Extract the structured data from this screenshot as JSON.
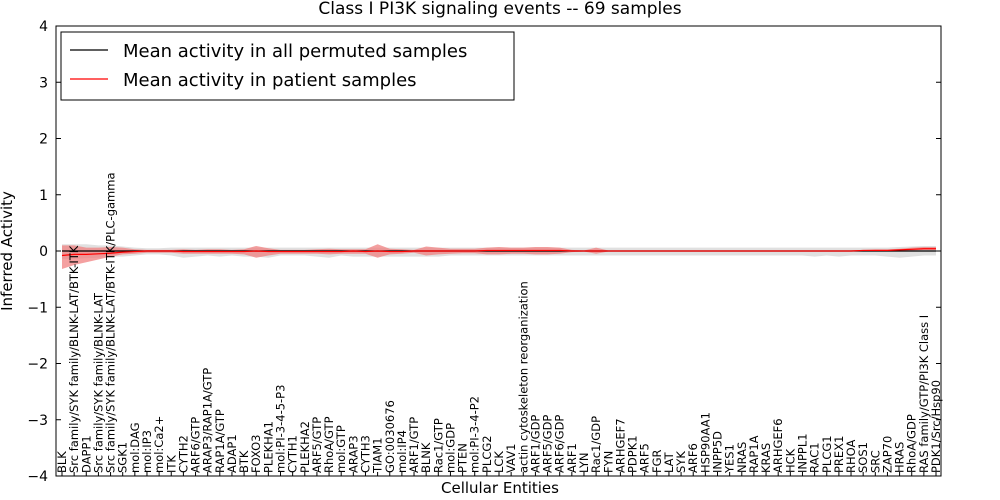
{
  "chart_data": {
    "type": "line",
    "title": "Class I PI3K signaling events -- 69 samples",
    "xlabel": "Cellular Entities",
    "ylabel": "Inferred Activity",
    "ylim": [
      -4,
      4
    ],
    "yticks": [
      "4",
      "3",
      "2",
      "1",
      "0",
      "−1",
      "−2",
      "−3",
      "−4"
    ],
    "ytick_values": [
      4,
      3,
      2,
      1,
      0,
      -1,
      -2,
      -3,
      -4
    ],
    "legend": {
      "placement": "top-left",
      "entries": [
        {
          "label": "Mean activity in all permuted samples",
          "color": "#000000"
        },
        {
          "label": "Mean activity in patient samples",
          "color": "#ff0000"
        }
      ]
    },
    "categories": [
      "BLK",
      "Src family/SYK family/BLNK-LAT/BTK-ITK",
      "DAPP1",
      "Src family/SYK family/BLNK-LAT",
      "Src family/SYK family/BLNK-LAT/BTK-ITK/PLC-gamma",
      "SGK1",
      "mol:DAG",
      "mol:IP3",
      "mol:Ca2+",
      "ITK",
      "CYTH2",
      "ARF6/GTP",
      "ARAP3/RAP1A/GTP",
      "RAP1A/GTP",
      "ADAP1",
      "BTK",
      "FOXO3",
      "PLEKHA1",
      "mol:PI-3-4-5-P3",
      "CYTH1",
      "PLEKHA2",
      "ARF5/GTP",
      "RhoA/GTP",
      "mol:GTP",
      "ARAP3",
      "CYTH3",
      "TIAM1",
      "GO:0030676",
      "mol:IP4",
      "ARF1/GTP",
      "BLNK",
      "Rac1/GTP",
      "mol:GDP",
      "PTEN",
      "mol:PI-3-4-P2",
      "PLCG2",
      "LCK",
      "VAV1",
      "actin cytoskeleton reorganization",
      "ARF1/GDP",
      "ARF5/GDP",
      "ARF6/GDP",
      "ARF1",
      "LYN",
      "Rac1/GDP",
      "FYN",
      "ARHGEF7",
      "PDPK1",
      "ARF5",
      "FGR",
      "LAT",
      "SYK",
      "ARF6",
      "HSP90AA1",
      "INPP5D",
      "YES1",
      "NRAS",
      "RAP1A",
      "KRAS",
      "ARHGEF6",
      "HCK",
      "INPPL1",
      "RAC1",
      "PLCG1",
      "PREX1",
      "RHOA",
      "SOS1",
      "SRC",
      "ZAP70",
      "HRAS",
      "RhoA/GDP",
      "RAS family/GTP/PI3K Class I",
      "PDK1/Src/Hsp90"
    ],
    "series": [
      {
        "name": "Mean activity in all permuted samples",
        "color": "#000000",
        "values": [
          0,
          0,
          0,
          0,
          0,
          0,
          0,
          0,
          0,
          0,
          0,
          0,
          0,
          0,
          0,
          0,
          0,
          0,
          0,
          0,
          0,
          0,
          0,
          0,
          0,
          0,
          0,
          0,
          0,
          0,
          0,
          0,
          0,
          0,
          0,
          0,
          0,
          0,
          0,
          0,
          0,
          0,
          0,
          0,
          0,
          0,
          0,
          0,
          0,
          0,
          0,
          0,
          0,
          0,
          0,
          0,
          0,
          0,
          0,
          0,
          0,
          0,
          0,
          0,
          0,
          0,
          0,
          0,
          0,
          0,
          0,
          0,
          0
        ],
        "band": {
          "color": "#cccccc",
          "upper": [
            0.12,
            0.12,
            0.12,
            0.1,
            0.1,
            0.08,
            0.06,
            0.05,
            0.05,
            0.06,
            0.06,
            0.06,
            0.06,
            0.06,
            0.06,
            0.06,
            0.06,
            0.06,
            0.06,
            0.06,
            0.06,
            0.06,
            0.06,
            0.06,
            0.06,
            0.06,
            0.06,
            0.06,
            0.06,
            0.06,
            0.06,
            0.06,
            0.06,
            0.06,
            0.06,
            0.06,
            0.06,
            0.06,
            0.06,
            0.06,
            0.06,
            0.06,
            0.06,
            0.06,
            0.06,
            0.06,
            0.06,
            0.06,
            0.06,
            0.06,
            0.06,
            0.06,
            0.06,
            0.06,
            0.06,
            0.06,
            0.06,
            0.06,
            0.06,
            0.06,
            0.06,
            0.06,
            0.06,
            0.06,
            0.06,
            0.06,
            0.06,
            0.06,
            0.06,
            0.07,
            0.08,
            0.09,
            0.09
          ],
          "lower": [
            -0.14,
            -0.14,
            -0.13,
            -0.12,
            -0.1,
            -0.1,
            -0.08,
            -0.06,
            -0.06,
            -0.08,
            -0.12,
            -0.1,
            -0.08,
            -0.1,
            -0.08,
            -0.1,
            -0.1,
            -0.12,
            -0.08,
            -0.08,
            -0.08,
            -0.1,
            -0.12,
            -0.08,
            -0.1,
            -0.1,
            -0.1,
            -0.1,
            -0.1,
            -0.1,
            -0.1,
            -0.1,
            -0.08,
            -0.08,
            -0.08,
            -0.08,
            -0.08,
            -0.08,
            -0.08,
            -0.08,
            -0.08,
            -0.08,
            -0.08,
            -0.08,
            -0.08,
            -0.08,
            -0.08,
            -0.08,
            -0.08,
            -0.08,
            -0.08,
            -0.08,
            -0.08,
            -0.08,
            -0.08,
            -0.08,
            -0.08,
            -0.08,
            -0.08,
            -0.08,
            -0.08,
            -0.08,
            -0.1,
            -0.08,
            -0.1,
            -0.08,
            -0.08,
            -0.08,
            -0.1,
            -0.12,
            -0.1,
            -0.08,
            -0.08
          ]
        }
      },
      {
        "name": "Mean activity in patient samples",
        "color": "#ff0000",
        "values": [
          -0.08,
          -0.06,
          -0.06,
          -0.05,
          -0.04,
          -0.02,
          -0.01,
          0,
          0,
          0,
          -0.01,
          -0.01,
          -0.01,
          -0.01,
          -0.01,
          -0.01,
          0,
          -0.01,
          -0.01,
          -0.01,
          -0.01,
          -0.01,
          -0.01,
          -0.01,
          0,
          -0.01,
          0,
          -0.01,
          -0.01,
          0,
          0,
          0,
          0,
          0,
          0,
          0.01,
          0.01,
          0.01,
          0.01,
          0.01,
          0.01,
          0.01,
          0,
          0,
          0,
          0,
          0,
          0,
          0,
          0,
          0,
          0,
          0,
          0,
          0,
          0,
          0,
          0,
          0,
          0,
          0,
          0,
          0,
          0,
          0,
          0,
          0.01,
          0.01,
          0.01,
          0.02,
          0.03,
          0.04,
          0.04
        ],
        "band": {
          "color": "#f08080",
          "upper": [
            0.1,
            0.1,
            0.06,
            0.06,
            0.07,
            0.06,
            0.03,
            0.02,
            0.02,
            0.02,
            0.03,
            0.02,
            0.03,
            0.03,
            0.02,
            0.03,
            0.09,
            0.05,
            0.02,
            0.02,
            0.02,
            0.03,
            0.04,
            0.03,
            0.03,
            0.03,
            0.12,
            0.04,
            0.03,
            0.02,
            0.08,
            0.06,
            0.04,
            0.04,
            0.04,
            0.06,
            0.07,
            0.06,
            0.06,
            0.07,
            0.07,
            0.06,
            0.02,
            0.01,
            0.06,
            0.01,
            0.01,
            0.01,
            0.01,
            0.01,
            0.01,
            0.01,
            0.01,
            0.01,
            0.01,
            0.01,
            0.01,
            0.01,
            0.01,
            0.01,
            0.01,
            0.01,
            0.01,
            0.01,
            0.01,
            0.01,
            0.02,
            0.03,
            0.03,
            0.04,
            0.06,
            0.07,
            0.07
          ],
          "lower": [
            -0.32,
            -0.25,
            -0.2,
            -0.15,
            -0.1,
            -0.06,
            -0.05,
            -0.03,
            -0.03,
            -0.03,
            -0.05,
            -0.05,
            -0.05,
            -0.05,
            -0.05,
            -0.06,
            -0.12,
            -0.08,
            -0.05,
            -0.05,
            -0.05,
            -0.05,
            -0.06,
            -0.05,
            -0.05,
            -0.05,
            -0.12,
            -0.06,
            -0.05,
            -0.03,
            -0.08,
            -0.06,
            -0.05,
            -0.04,
            -0.04,
            -0.06,
            -0.06,
            -0.05,
            -0.05,
            -0.06,
            -0.06,
            -0.05,
            -0.02,
            -0.01,
            -0.05,
            -0.01,
            -0.01,
            -0.01,
            -0.01,
            -0.01,
            -0.01,
            -0.01,
            -0.01,
            -0.01,
            -0.01,
            -0.01,
            -0.01,
            -0.01,
            -0.01,
            -0.01,
            -0.01,
            -0.01,
            -0.01,
            -0.01,
            -0.01,
            -0.01,
            0,
            0,
            0,
            0,
            0.01,
            0.02,
            0.02
          ]
        }
      }
    ]
  }
}
